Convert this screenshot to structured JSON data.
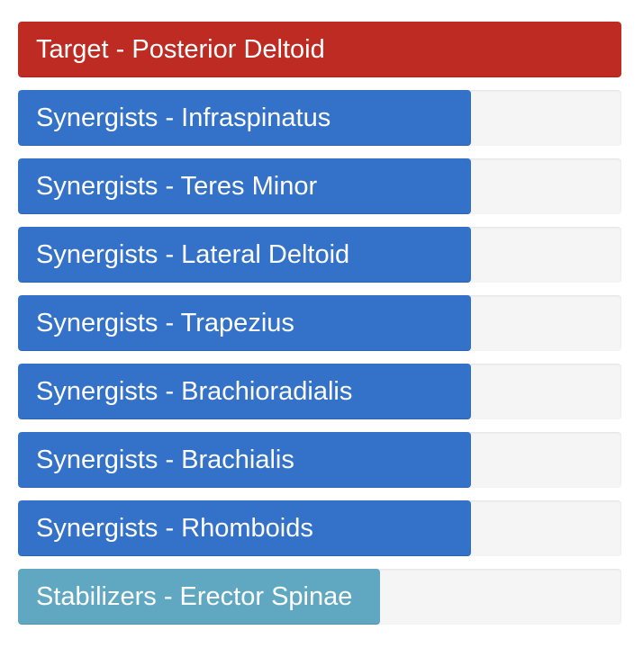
{
  "colors": {
    "target": "#bd2b22",
    "synergist": "#3372c8",
    "stabilizer": "#60a8c2",
    "track": "#f5f5f5"
  },
  "bars": [
    {
      "label": "Target - Posterior Deltoid",
      "role": "target",
      "percent": 100
    },
    {
      "label": "Synergists - Infraspinatus",
      "role": "synergist",
      "percent": 75
    },
    {
      "label": "Synergists - Teres Minor",
      "role": "synergist",
      "percent": 75
    },
    {
      "label": "Synergists - Lateral Deltoid",
      "role": "synergist",
      "percent": 75
    },
    {
      "label": "Synergists - Trapezius",
      "role": "synergist",
      "percent": 75
    },
    {
      "label": "Synergists - Brachioradialis",
      "role": "synergist",
      "percent": 75
    },
    {
      "label": "Synergists - Brachialis",
      "role": "synergist",
      "percent": 75
    },
    {
      "label": "Synergists - Rhomboids",
      "role": "synergist",
      "percent": 75
    },
    {
      "label": "Stabilizers - Erector Spinae",
      "role": "stabilizer",
      "percent": 60
    }
  ]
}
